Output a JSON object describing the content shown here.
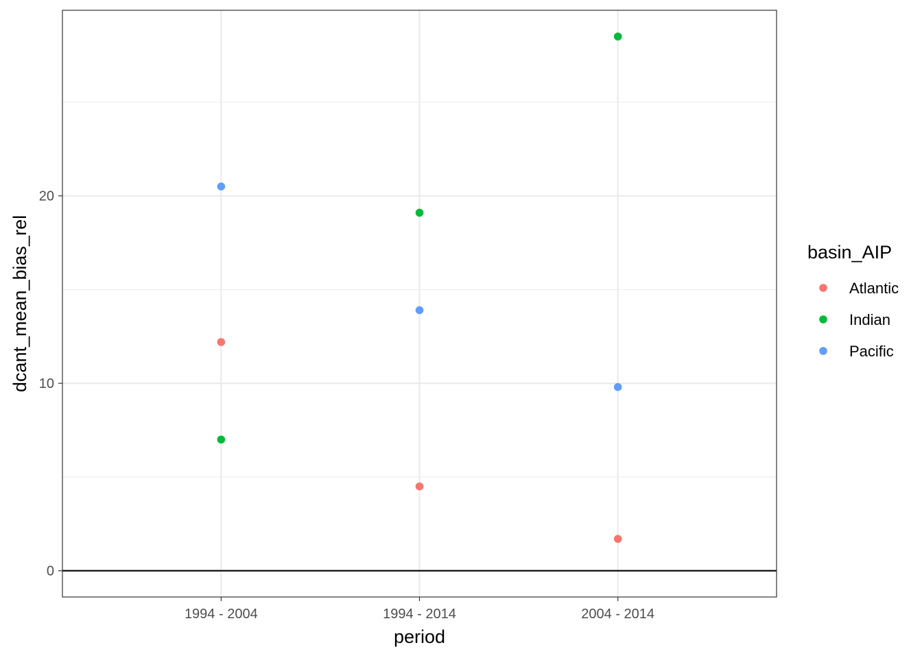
{
  "chart_data": {
    "type": "scatter",
    "xlabel": "period",
    "ylabel": "dcant_mean_bias_rel",
    "categories": [
      "1994 - 2004",
      "1994 - 2014",
      "2004 - 2014"
    ],
    "ylim": [
      -1.4,
      29.9
    ],
    "yticks": [
      0,
      10,
      20
    ],
    "minor_yticks": [
      5,
      15,
      25
    ],
    "grid": true,
    "hline": 0,
    "legend": {
      "title": "basin_AIP",
      "placement": "right"
    },
    "series": [
      {
        "name": "Atlantic",
        "color": "#F8766D",
        "values": [
          12.2,
          4.5,
          1.7
        ]
      },
      {
        "name": "Indian",
        "color": "#00BA38",
        "values": [
          7.0,
          19.1,
          28.5
        ]
      },
      {
        "name": "Pacific",
        "color": "#619CFF",
        "values": [
          20.5,
          13.9,
          9.8
        ]
      }
    ]
  }
}
